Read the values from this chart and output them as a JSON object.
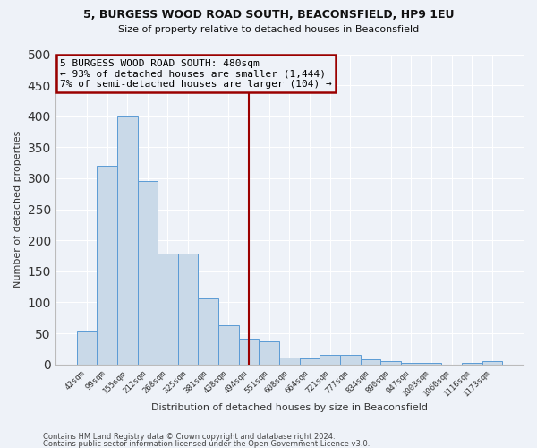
{
  "title1": "5, BURGESS WOOD ROAD SOUTH, BEACONSFIELD, HP9 1EU",
  "title2": "Size of property relative to detached houses in Beaconsfield",
  "xlabel": "Distribution of detached houses by size in Beaconsfield",
  "ylabel": "Number of detached properties",
  "categories": [
    "42sqm",
    "99sqm",
    "155sqm",
    "212sqm",
    "268sqm",
    "325sqm",
    "381sqm",
    "438sqm",
    "494sqm",
    "551sqm",
    "608sqm",
    "664sqm",
    "721sqm",
    "777sqm",
    "834sqm",
    "890sqm",
    "947sqm",
    "1003sqm",
    "1060sqm",
    "1116sqm",
    "1173sqm"
  ],
  "values": [
    55,
    320,
    400,
    295,
    178,
    178,
    107,
    63,
    42,
    37,
    11,
    10,
    15,
    15,
    8,
    5,
    3,
    2,
    0,
    3,
    5
  ],
  "bar_color": "#c9d9e8",
  "bar_edge_color": "#5b9bd5",
  "annotation_line_x": "494sqm",
  "annotation_line_color": "#9b0000",
  "annotation_box_text": "5 BURGESS WOOD ROAD SOUTH: 480sqm\n← 93% of detached houses are smaller (1,444)\n7% of semi-detached houses are larger (104) →",
  "annotation_box_color": "#9b0000",
  "footer1": "Contains HM Land Registry data © Crown copyright and database right 2024.",
  "footer2": "Contains public sector information licensed under the Open Government Licence v3.0.",
  "bg_color": "#eef2f8",
  "grid_color": "#ffffff",
  "ylim": [
    0,
    500
  ],
  "yticks": [
    0,
    50,
    100,
    150,
    200,
    250,
    300,
    350,
    400,
    450,
    500
  ]
}
